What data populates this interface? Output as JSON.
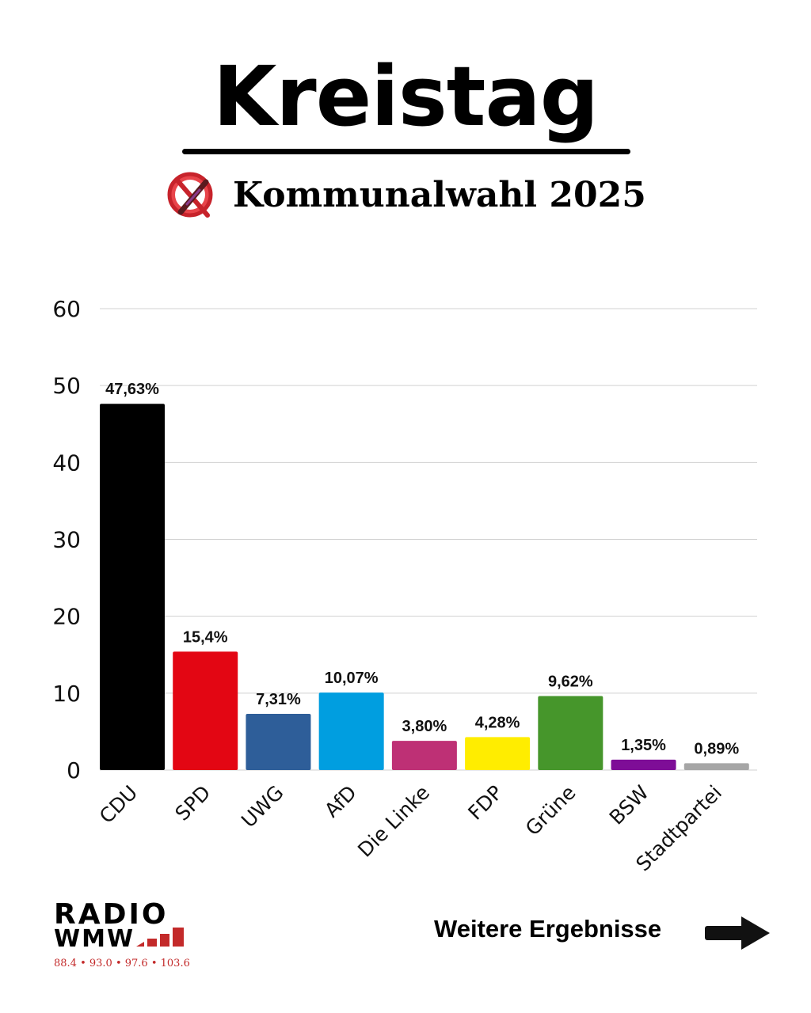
{
  "header": {
    "title": "Kreistag",
    "subtitle": "Kommunalwahl 2025",
    "ballot_icon": "ballot-x-icon"
  },
  "chart_data": {
    "type": "bar",
    "title": "Kreistag",
    "subtitle": "Kommunalwahl 2025",
    "xlabel": "",
    "ylabel": "",
    "ylim": [
      0,
      60
    ],
    "yticks": [
      0,
      10,
      20,
      30,
      40,
      50,
      60
    ],
    "grid": true,
    "categories": [
      "CDU",
      "SPD",
      "UWG",
      "AfD",
      "Die Linke",
      "FDP",
      "Grüne",
      "BSW",
      "Stadtpartei"
    ],
    "values": [
      47.63,
      15.4,
      7.31,
      10.07,
      3.8,
      4.28,
      9.62,
      1.35,
      0.89
    ],
    "data_labels": [
      "47,63%",
      "15,4%",
      "7,31%",
      "10,07%",
      "3,80%",
      "4,28%",
      "9,62%",
      "1,35%",
      "0,89%"
    ],
    "colors": [
      "#000000",
      "#e30613",
      "#2e5e99",
      "#009ee0",
      "#be3075",
      "#ffed00",
      "#46962b",
      "#7e0d97",
      "#a6a6a6"
    ]
  },
  "footer": {
    "logo_radio": "RADIO",
    "logo_wmw": "WMW",
    "logo_frequencies": "88.4 • 93.0 • 97.6 • 103.6",
    "more_results": "Weitere Ergebnisse",
    "arrow_icon": "arrow-right-icon"
  }
}
